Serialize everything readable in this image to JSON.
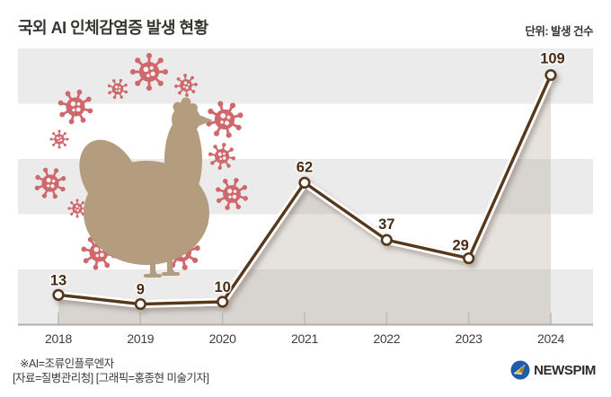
{
  "header": {
    "title": "국외 AI 인체감염증 발생 현황",
    "unit_label": "단위: 발생 건수"
  },
  "chart_data": {
    "type": "line",
    "title": "국외 AI 인체감염증 발생 현황",
    "categories": [
      "2018",
      "2019",
      "2020",
      "2021",
      "2022",
      "2023",
      "2024"
    ],
    "values": [
      13,
      9,
      10,
      62,
      37,
      29,
      109
    ],
    "xlabel": "",
    "ylabel": "발생 건수",
    "ylim": [
      0,
      120
    ],
    "grid": "horizontal-stripes",
    "legend": "none",
    "line_color": "#583а1c",
    "colors": {
      "line": "#57381b",
      "line_casing": "#ffffff",
      "marker_fill": "#ffffff",
      "value_label": "#4a2a12",
      "area_fill": "rgba(171,158,143,0.30)",
      "stripe": "#ebebeb",
      "axis": "#b1aeab",
      "tick": "#bdbab7",
      "year_label": "#403c38"
    }
  },
  "decorations": {
    "chicken_icon": "hen-silhouette",
    "chicken_color": "#b49c7e",
    "virus_icon": "virus-particle",
    "virus_color": "#cf686d"
  },
  "footer": {
    "note1": "※AI=조류인플루엔자",
    "note2": "[자료=질병관리청] [그래픽=홍종현 미술기자]",
    "logo_text": "NEWSPIM",
    "logo_colors": {
      "circle": "#1c5ca8",
      "swoosh": "#f2a71b"
    }
  }
}
